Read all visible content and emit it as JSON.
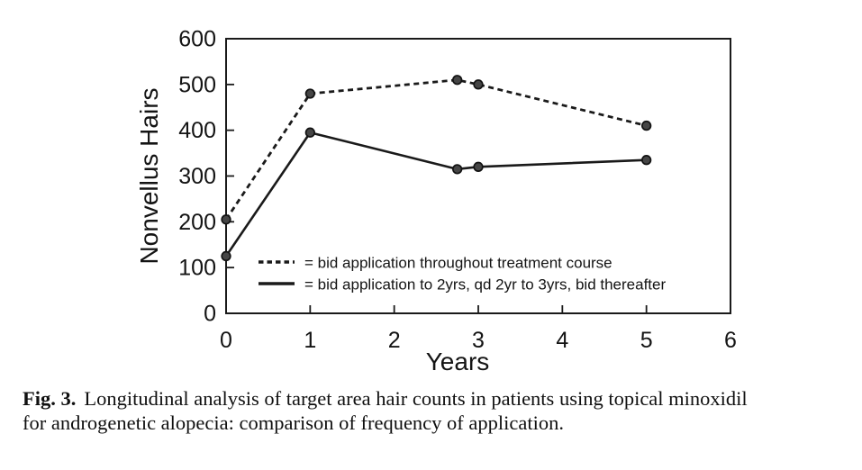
{
  "figure": {
    "caption": {
      "label": "Fig. 3.",
      "line1": "Longitudinal analysis of target area hair counts in patients using topical minoxidil",
      "line2": "for androgenetic alopecia: comparison of frequency of application."
    }
  },
  "chart_data": {
    "type": "line",
    "title": "",
    "xlabel": "Years",
    "ylabel": "Nonvellus Hairs",
    "xlim": [
      0,
      6
    ],
    "ylim": [
      0,
      600
    ],
    "x_ticks": [
      0,
      1,
      2,
      3,
      4,
      5,
      6
    ],
    "y_ticks": [
      0,
      100,
      200,
      300,
      400,
      500,
      600
    ],
    "grid": false,
    "legend_position": "inside-bottom-left",
    "series": [
      {
        "name": "= bid application throughout treatment course",
        "style": "dashed",
        "x": [
          0,
          1,
          2.75,
          3,
          5
        ],
        "values": [
          205,
          480,
          510,
          500,
          410
        ]
      },
      {
        "name": "= bid application to 2yrs, qd 2yr to 3yrs, bid thereafter",
        "style": "solid",
        "x": [
          0,
          1,
          2.75,
          3,
          5
        ],
        "values": [
          125,
          395,
          315,
          320,
          335
        ]
      }
    ],
    "colors": {
      "line": "#1a1a1a",
      "marker_fill": "#454545",
      "marker_stroke": "#121212",
      "text": "#141414",
      "background": "#ffffff"
    }
  }
}
